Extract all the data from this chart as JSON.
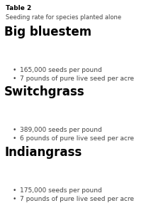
{
  "table_label": "Table 2",
  "table_subtitle": "Seeding rate for species planted alone",
  "species": [
    {
      "name": "Big bluestem",
      "bullets": [
        "165,000 seeds per pound",
        "7 pounds of pure live seed per acre"
      ]
    },
    {
      "name": "Switchgrass",
      "bullets": [
        "389,000 seeds per pound",
        "6 pounds of pure live seed per acre"
      ]
    },
    {
      "name": "Indiangrass",
      "bullets": [
        "175,000 seeds per pound",
        "7 pounds of pure live seed per acre"
      ]
    }
  ],
  "bg_color": "#ffffff",
  "table_label_color": "#000000",
  "subtitle_color": "#444444",
  "heading_color": "#000000",
  "bullet_color": "#444444",
  "table_label_fontsize": 6.5,
  "subtitle_fontsize": 6.0,
  "heading_fontsize": 12.0,
  "bullet_fontsize": 6.5,
  "bullet_char": "•"
}
